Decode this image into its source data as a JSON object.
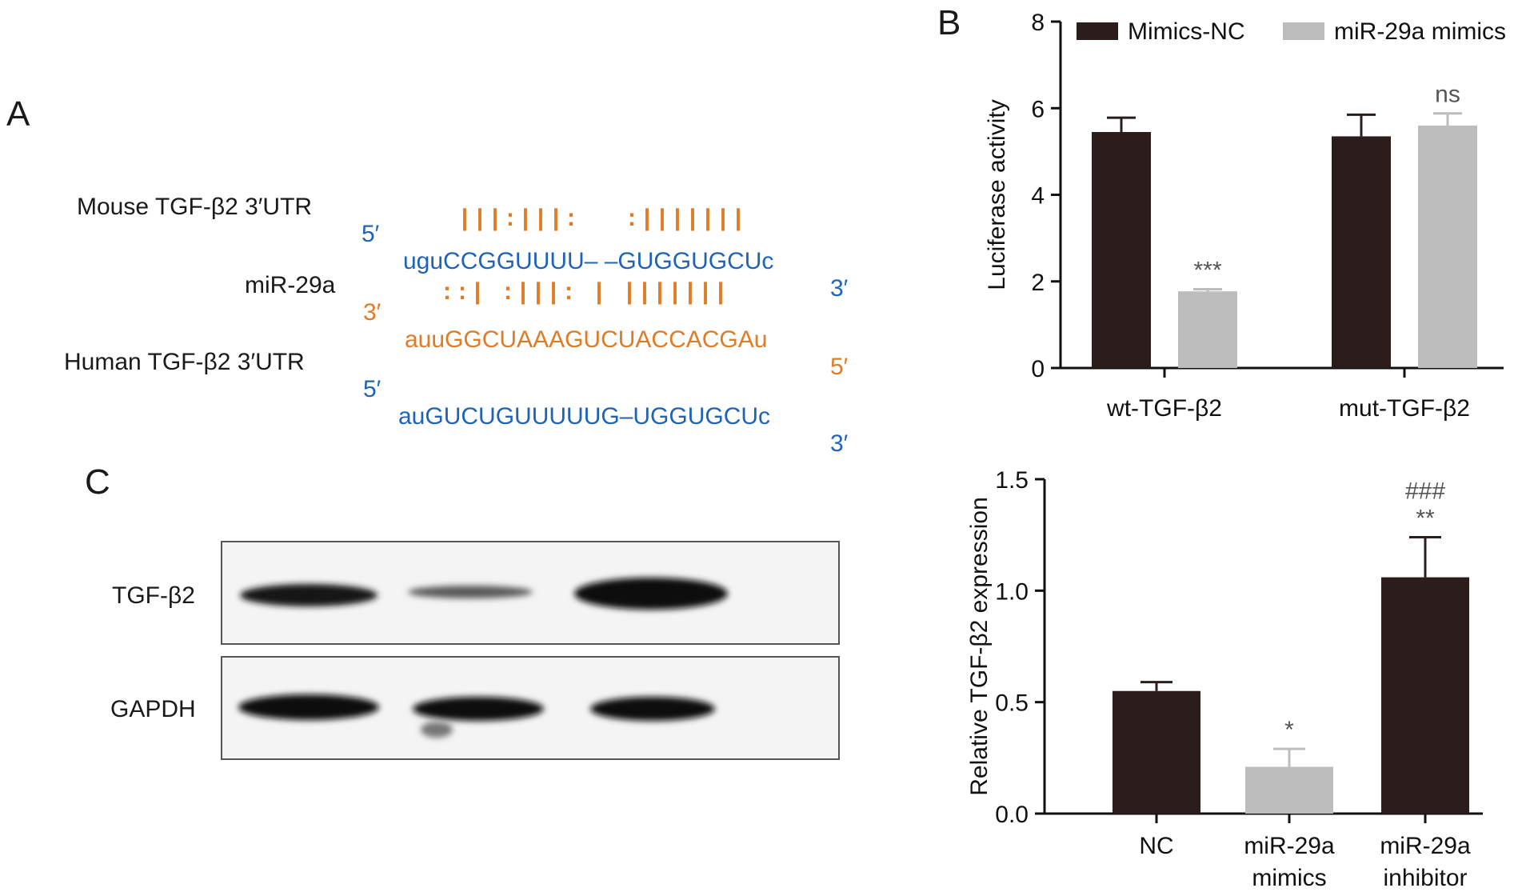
{
  "colors": {
    "blue": "#1f63b8",
    "orange": "#e07b26",
    "dark_bar": "#2b1d1c",
    "light_bar": "#bdbdbd"
  },
  "panelA": {
    "label": "A",
    "mouse_label": "Mouse TGF-β2 3′UTR",
    "mouse_5": "5′",
    "mouse_seq": "uguCCGGUUUU– –GUGGUGCUc",
    "mouse_3": "3′",
    "pairs_top": "|||:|||:   :|||||||",
    "mir_label": "miR-29a",
    "mir_3": "3′",
    "mir_seq": "auuGGCUAAAGUCUACCACGAu",
    "mir_5": "5′",
    "pairs_bottom": "::| :|||: | |||||||",
    "human_label": "Human TGF-β2 3′UTR",
    "human_5": "5′",
    "human_seq": "auGUCUGUUUUUG–UGGUGCUc",
    "human_3": "3′"
  },
  "panelB": {
    "label": "B"
  },
  "panelC": {
    "label": "C",
    "blot_rows": [
      "TGF-β2",
      "GAPDH"
    ]
  },
  "chart_data": [
    {
      "type": "bar",
      "ylabel": "Luciferase activity",
      "ylim": [
        0,
        8
      ],
      "yticks": [
        "0",
        "2",
        "4",
        "6",
        "8"
      ],
      "categories": [
        "wt-TGF-β2",
        "mut-TGF-β2"
      ],
      "legend_position": "top",
      "series": [
        {
          "name": "Mimics-NC",
          "color": "#2b1d1c",
          "values": [
            5.45,
            5.35
          ],
          "errors": [
            0.33,
            0.5
          ]
        },
        {
          "name": "miR-29a mimics",
          "color": "#bdbdbd",
          "values": [
            1.77,
            5.6
          ],
          "errors": [
            0.05,
            0.28
          ]
        }
      ],
      "annotations": [
        {
          "category": 0,
          "series": 1,
          "text": "***"
        },
        {
          "category": 1,
          "series": 1,
          "text": "ns"
        }
      ]
    },
    {
      "type": "bar",
      "ylabel": "Relative TGF-β2 expression",
      "ylim": [
        0,
        1.5
      ],
      "yticks": [
        "0.0",
        "0.5",
        "1.0",
        "1.5"
      ],
      "categories": [
        [
          "NC"
        ],
        [
          "miR-29a",
          "mimics"
        ],
        [
          "miR-29a",
          "inhibitor"
        ]
      ],
      "values": [
        0.55,
        0.21,
        1.06
      ],
      "errors": [
        0.04,
        0.08,
        0.18
      ],
      "bar_colors": [
        "#2b1d1c",
        "#bdbdbd",
        "#2b1d1c"
      ],
      "annotations": [
        {
          "index": 1,
          "lines": [
            "*"
          ]
        },
        {
          "index": 2,
          "lines": [
            "###",
            "**"
          ]
        }
      ]
    }
  ]
}
